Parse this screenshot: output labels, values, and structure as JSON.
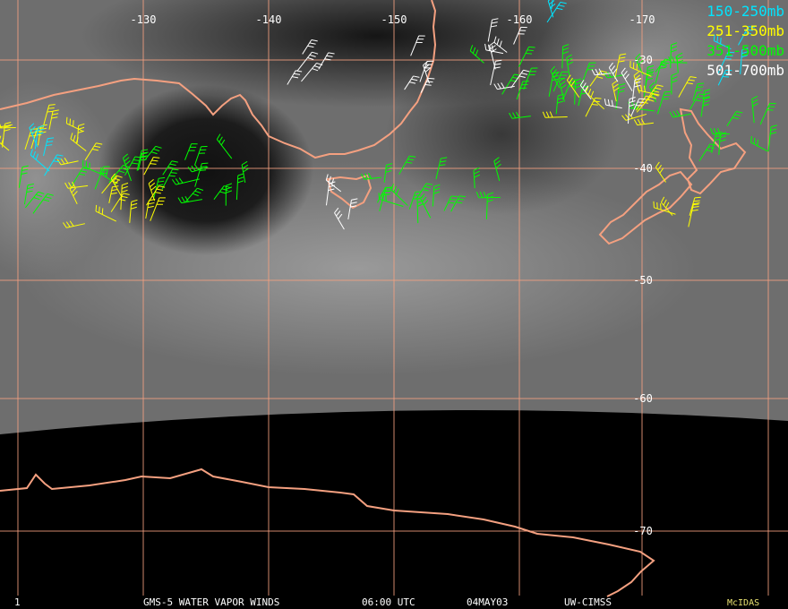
{
  "grid": {
    "longitudes": [
      -130,
      -140,
      -150,
      -160,
      -170
    ],
    "latitudes": [
      -30,
      -40,
      -50,
      -60,
      -70
    ]
  },
  "legend": [
    {
      "label": "150-250mb",
      "color": "#00e5ff"
    },
    {
      "label": "251-350mb",
      "color": "#ffff00"
    },
    {
      "label": "351-500mb",
      "color": "#00ff00"
    },
    {
      "label": "501-700mb",
      "color": "#ffffff"
    }
  ],
  "footer": {
    "frame": "1",
    "title": "GMS-5 WATER VAPOR WINDS",
    "time": "06:00 UTC",
    "date": "04MAY03",
    "source": "UW-CIMSS",
    "software": "McIDAS"
  }
}
